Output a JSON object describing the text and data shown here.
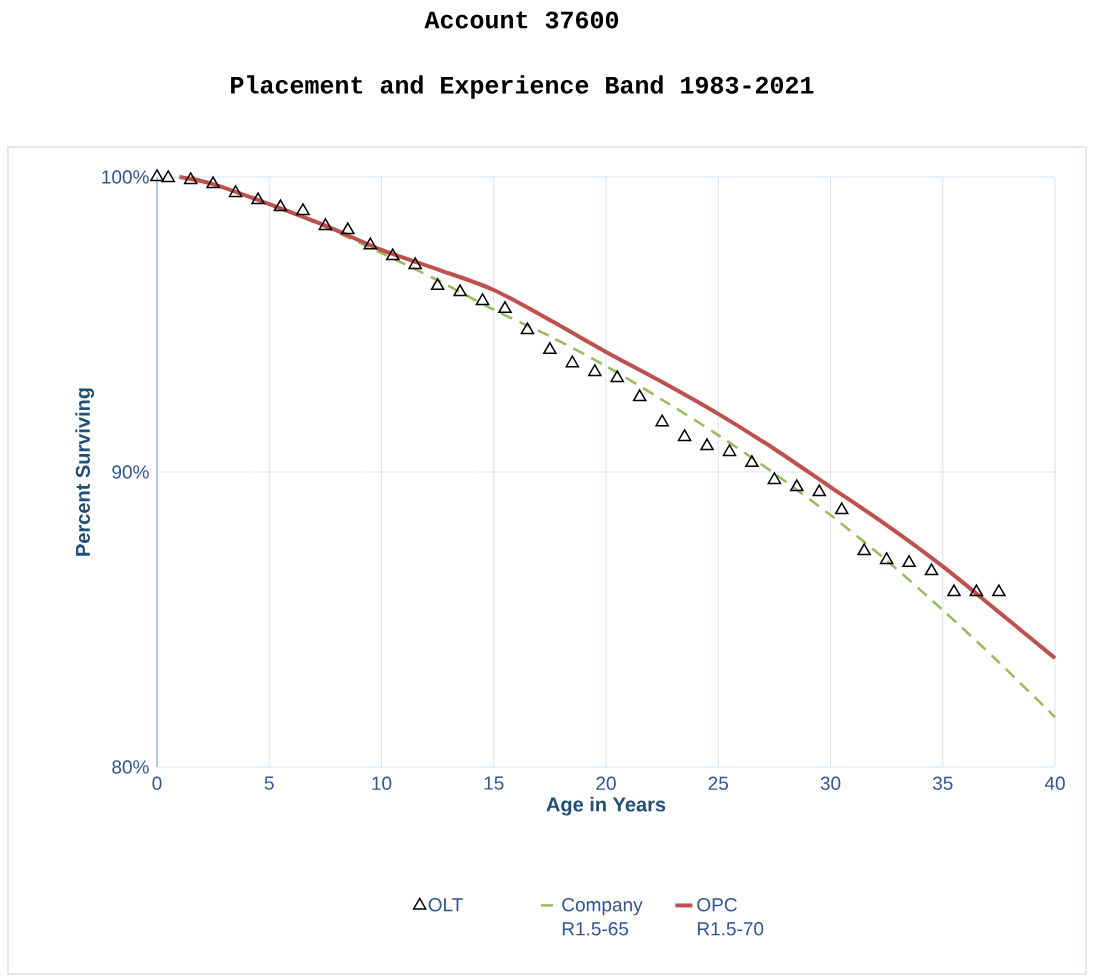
{
  "chart_data": {
    "type": "line",
    "title": "Account 37600",
    "subtitle": "Placement and Experience Band 1983-2021",
    "xlabel": "Age in Years",
    "ylabel": "Percent Surviving",
    "xlim": [
      0,
      40
    ],
    "xticks": [
      0,
      5,
      10,
      15,
      20,
      25,
      30,
      35,
      40
    ],
    "ylim": [
      80,
      100
    ],
    "yticks": [
      {
        "value": 80,
        "label": "80%"
      },
      {
        "value": 90,
        "label": "90%"
      },
      {
        "value": 100,
        "label": "100%"
      }
    ],
    "grid": true,
    "legend": "bottom",
    "series": [
      {
        "name": "OLT",
        "type": "scatter",
        "marker": "triangle",
        "color": "#000000",
        "x": [
          0,
          0.5,
          1.5,
          2.5,
          3.5,
          4.5,
          5.5,
          6.5,
          7.5,
          8.5,
          9.5,
          10.5,
          11.5,
          12.5,
          13.5,
          14.5,
          15.5,
          16.5,
          17.5,
          18.5,
          19.5,
          20.5,
          21.5,
          22.5,
          23.5,
          24.5,
          25.5,
          26.5,
          27.5,
          28.5,
          29.5,
          30.5,
          31.5,
          32.5,
          33.5,
          34.5,
          35.5,
          36.5,
          37.5
        ],
        "values": [
          100.0,
          99.97,
          99.9,
          99.76,
          99.46,
          99.22,
          98.98,
          98.85,
          98.34,
          98.2,
          97.69,
          97.32,
          97.02,
          96.31,
          96.1,
          95.8,
          95.53,
          94.81,
          94.14,
          93.69,
          93.39,
          93.19,
          92.54,
          91.69,
          91.19,
          90.88,
          90.68,
          90.31,
          89.73,
          89.49,
          89.32,
          88.71,
          87.32,
          87.02,
          86.92,
          86.64,
          85.93,
          85.93,
          85.93
        ]
      },
      {
        "name": "Company R1.5-65",
        "type": "line",
        "line_style": "dashed",
        "color": "#9bbb59",
        "x": [
          1.5,
          2.5,
          5,
          7.5,
          10,
          12.5,
          15,
          17.5,
          20,
          22.5,
          25,
          27.5,
          30,
          32.5,
          35,
          37.5,
          40
        ],
        "values": [
          100.0,
          99.76,
          99.08,
          98.3,
          97.42,
          96.5,
          95.5,
          94.6,
          93.59,
          92.45,
          91.25,
          89.95,
          88.54,
          87.0,
          85.32,
          83.55,
          81.69
        ]
      },
      {
        "name": "OPC R1.5-70",
        "type": "line",
        "line_style": "solid",
        "color": "#c0504d",
        "x": [
          1,
          2.5,
          5,
          7.5,
          10,
          12.5,
          15,
          17.5,
          20,
          22.5,
          25,
          27.5,
          30,
          32.5,
          35,
          37.5,
          40
        ],
        "values": [
          100.0,
          99.76,
          99.08,
          98.35,
          97.53,
          96.87,
          96.17,
          95.15,
          94.07,
          93.05,
          91.97,
          90.78,
          89.49,
          88.2,
          86.8,
          85.25,
          83.69
        ]
      }
    ]
  }
}
